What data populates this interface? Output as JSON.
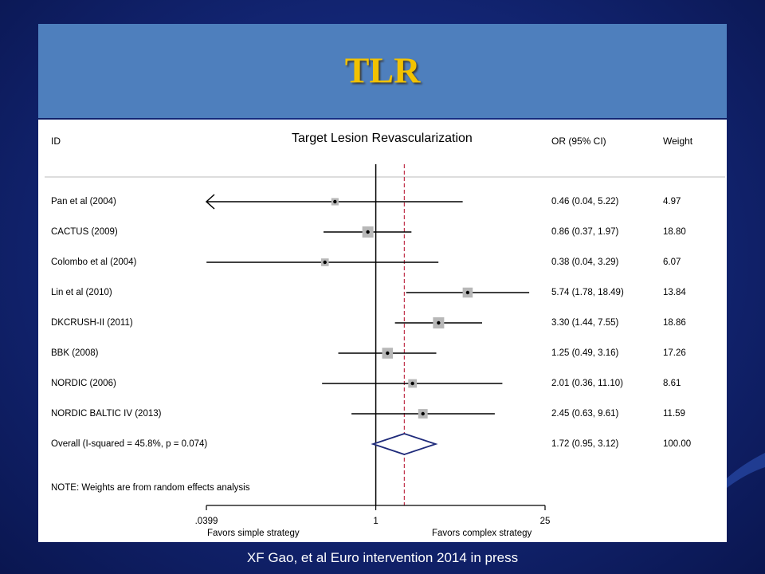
{
  "slide": {
    "title": "TLR",
    "citation": "XF Gao, et al Euro intervention 2014 in press"
  },
  "chart_data": {
    "type": "forest",
    "title": "Target Lesion Revascularization",
    "columns": {
      "id": "ID",
      "effect": "OR (95% CI)",
      "weight": "Weight"
    },
    "scale": "log",
    "xlim": [
      0.0399,
      25
    ],
    "ticks": [
      {
        "value": 0.0399,
        "label": ".0399"
      },
      {
        "value": 1,
        "label": "1"
      },
      {
        "value": 25,
        "label": "25"
      }
    ],
    "x_left_label": "Favors simple strategy",
    "x_right_label": "Favors complex strategy",
    "null_line": 1,
    "pooled_line": 1.72,
    "studies": [
      {
        "id": "Pan et al (2004)",
        "or": 0.46,
        "lo": 0.04,
        "hi": 5.22,
        "ci_text": "0.46 (0.04, 5.22)",
        "weight": 4.97,
        "weight_text": "4.97",
        "truncated_left": true
      },
      {
        "id": "CACTUS (2009)",
        "or": 0.86,
        "lo": 0.37,
        "hi": 1.97,
        "ci_text": "0.86 (0.37, 1.97)",
        "weight": 18.8,
        "weight_text": "18.80"
      },
      {
        "id": "Colombo et al (2004)",
        "or": 0.38,
        "lo": 0.04,
        "hi": 3.29,
        "ci_text": "0.38 (0.04, 3.29)",
        "weight": 6.07,
        "weight_text": "6.07"
      },
      {
        "id": "Lin et al (2010)",
        "or": 5.74,
        "lo": 1.78,
        "hi": 18.49,
        "ci_text": "5.74 (1.78, 18.49)",
        "weight": 13.84,
        "weight_text": "13.84"
      },
      {
        "id": "DKCRUSH-II  (2011)",
        "or": 3.3,
        "lo": 1.44,
        "hi": 7.55,
        "ci_text": "3.30 (1.44, 7.55)",
        "weight": 18.86,
        "weight_text": "18.86"
      },
      {
        "id": "BBK (2008)",
        "or": 1.25,
        "lo": 0.49,
        "hi": 3.16,
        "ci_text": "1.25 (0.49, 3.16)",
        "weight": 17.26,
        "weight_text": "17.26"
      },
      {
        "id": "NORDIC (2006)",
        "or": 2.01,
        "lo": 0.36,
        "hi": 11.1,
        "ci_text": "2.01 (0.36, 11.10)",
        "weight": 8.61,
        "weight_text": "8.61"
      },
      {
        "id": "NORDIC BALTIC IV (2013)",
        "or": 2.45,
        "lo": 0.63,
        "hi": 9.61,
        "ci_text": "2.45 (0.63, 9.61)",
        "weight": 11.59,
        "weight_text": "11.59"
      }
    ],
    "overall": {
      "label": "Overall  (I-squared = 45.8%, p = 0.074)",
      "or": 1.72,
      "lo": 0.95,
      "hi": 3.12,
      "ci_text": "1.72 (0.95, 3.12)",
      "weight_text": "100.00"
    },
    "note": "NOTE: Weights are from random effects analysis",
    "colors": {
      "square": "#b8b8b8",
      "diamond": "#1e2a7a",
      "pooled_line": "#c0304a",
      "line": "#000000"
    }
  }
}
